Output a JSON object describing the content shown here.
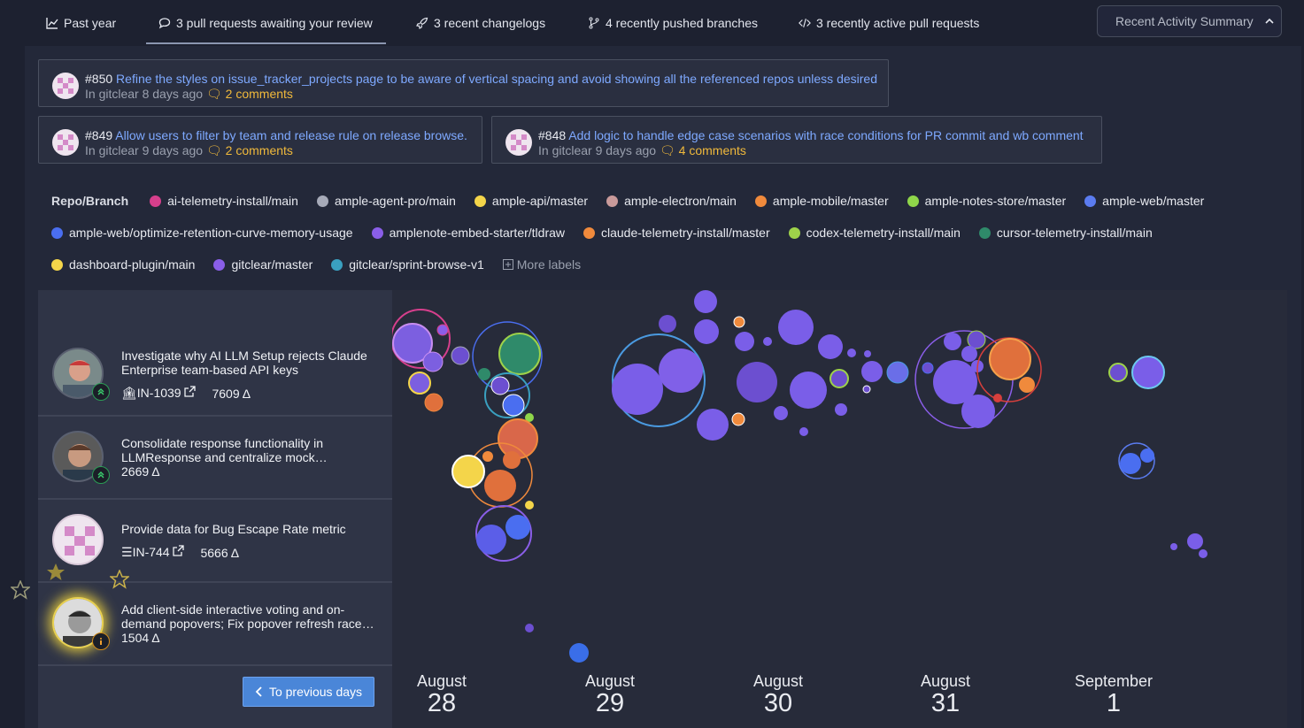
{
  "tabs": [
    {
      "label": "Past year",
      "icon": "chart-line-icon"
    },
    {
      "label": "3 pull requests awaiting your review",
      "icon": "comment-icon"
    },
    {
      "label": "3 recent changelogs",
      "icon": "rocket-icon"
    },
    {
      "label": "4 recently pushed branches",
      "icon": "branch-icon"
    },
    {
      "label": "3 recently active pull requests",
      "icon": "code-icon"
    }
  ],
  "summary_button": "Recent Activity Summary",
  "pull_requests": [
    {
      "number": "#850",
      "title": "Refine the styles on issue_tracker_projects page to be aware of vertical spacing and avoid showing all the referenced repos unless desired",
      "meta": "In gitclear 8 days ago",
      "comments": "2 comments"
    },
    {
      "number": "#849",
      "title": "Allow users to filter by team and release rule on release browse.",
      "meta": "In gitclear 9 days ago",
      "comments": "2 comments"
    },
    {
      "number": "#848",
      "title": "Add logic to handle edge case scenarios with race conditions for PR commit and wb comment",
      "meta": "In gitclear 9 days ago",
      "comments": "4 comments"
    }
  ],
  "labels_title": "Repo/Branch",
  "repo_labels": [
    {
      "name": "ai-telemetry-install/main",
      "color": "#d63f8c"
    },
    {
      "name": "ample-agent-pro/main",
      "color": "#a6aab8"
    },
    {
      "name": "ample-api/master",
      "color": "#f4d54a"
    },
    {
      "name": "ample-electron/main",
      "color": "#c99a9a"
    },
    {
      "name": "ample-mobile/master",
      "color": "#f08a3c"
    },
    {
      "name": "ample-notes-store/master",
      "color": "#8fd64a"
    },
    {
      "name": "ample-web/master",
      "color": "#5b7cf0"
    },
    {
      "name": "ample-web/optimize-retention-curve-memory-usage",
      "color": "#4a6ef0"
    },
    {
      "name": "amplenote-embed-starter/tldraw",
      "color": "#8a5ee8"
    },
    {
      "name": "claude-telemetry-install/master",
      "color": "#f08a3c"
    },
    {
      "name": "codex-telemetry-install/main",
      "color": "#9ed24a"
    },
    {
      "name": "cursor-telemetry-install/main",
      "color": "#2f8a6a"
    },
    {
      "name": "dashboard-plugin/main",
      "color": "#f4d54a"
    },
    {
      "name": "gitclear/master",
      "color": "#8a5ee8"
    },
    {
      "name": "gitclear/sprint-browse-v1",
      "color": "#3aa0c0"
    }
  ],
  "more_labels": "More labels",
  "items": [
    {
      "title": "Investigate why AI LLM Setup rejects Claude Enterprise team-based API keys",
      "ticket": "IN-1039",
      "delta": "7609 Δ"
    },
    {
      "title": "Consolidate response functionality in LLMResponse and centralize mock…",
      "delta": "2669 Δ"
    },
    {
      "title": "Provide data for Bug Escape Rate metric",
      "ticket": "IN-744",
      "delta": "5666 Δ"
    },
    {
      "title": "Add client-side interactive voting and on-demand popovers; Fix popover refresh race…",
      "delta": "1504 Δ"
    }
  ],
  "prev_button": "To previous days",
  "dates": [
    {
      "month": "August",
      "day": "28"
    },
    {
      "month": "August",
      "day": "29"
    },
    {
      "month": "August",
      "day": "30"
    },
    {
      "month": "August",
      "day": "31"
    },
    {
      "month": "September",
      "day": "1"
    }
  ]
}
